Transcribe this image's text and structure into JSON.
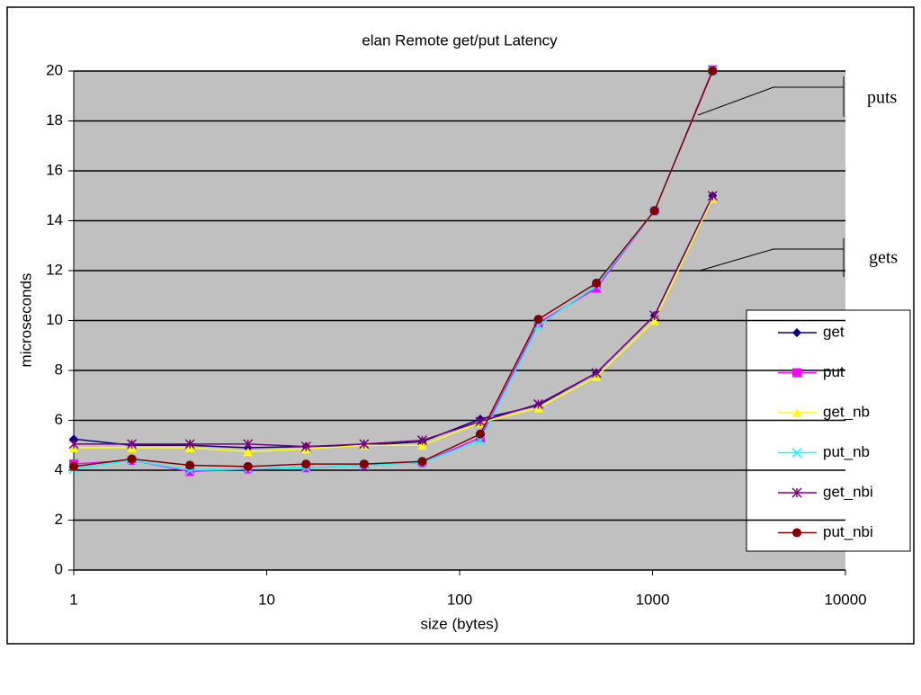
{
  "chart_data": {
    "type": "line",
    "title": "elan Remote get/put Latency",
    "x_label": "size (bytes)",
    "y_label": "microseconds",
    "x": [
      1,
      2,
      4,
      8,
      16,
      32,
      64,
      128,
      256,
      512,
      1024,
      2048
    ],
    "xlim": [
      1,
      10000
    ],
    "xticks": [
      1,
      10,
      100,
      1000,
      10000
    ],
    "xscale": "log",
    "ylim": [
      0,
      20
    ],
    "yticks": [
      0,
      2,
      4,
      6,
      8,
      10,
      12,
      14,
      16,
      18,
      20
    ],
    "grid": true,
    "legend": "right",
    "series": [
      {
        "name": "get",
        "color": "#000080",
        "marker": "diamond",
        "values": [
          5.25,
          5.0,
          5.0,
          4.9,
          4.95,
          5.0,
          5.15,
          6.05,
          6.6,
          7.9,
          10.2,
          15.0
        ]
      },
      {
        "name": "put",
        "color": "#ff00ff",
        "marker": "square",
        "values": [
          4.25,
          4.4,
          3.95,
          4.05,
          4.1,
          4.2,
          4.3,
          5.3,
          9.9,
          11.3,
          14.4,
          20.05
        ]
      },
      {
        "name": "get_nb",
        "color": "#ffff00",
        "marker": "triangle",
        "values": [
          4.9,
          4.9,
          4.9,
          4.75,
          4.85,
          5.0,
          5.0,
          5.9,
          6.5,
          7.75,
          10.0,
          14.9
        ]
      },
      {
        "name": "put_nb",
        "color": "#00ffff",
        "marker": "x",
        "values": [
          4.05,
          4.4,
          4.0,
          4.05,
          4.1,
          4.2,
          4.3,
          5.2,
          9.8,
          11.4,
          14.4,
          20.0
        ]
      },
      {
        "name": "get_nbi",
        "color": "#800080",
        "marker": "star",
        "values": [
          5.05,
          5.05,
          5.05,
          5.05,
          4.95,
          5.05,
          5.2,
          5.95,
          6.65,
          7.9,
          10.2,
          15.0
        ]
      },
      {
        "name": "put_nbi",
        "color": "#800000",
        "marker": "circle",
        "values": [
          4.15,
          4.45,
          4.2,
          4.15,
          4.25,
          4.25,
          4.35,
          5.45,
          10.05,
          11.5,
          14.4,
          20.0
        ]
      }
    ],
    "annotations": [
      "puts",
      "gets"
    ]
  }
}
